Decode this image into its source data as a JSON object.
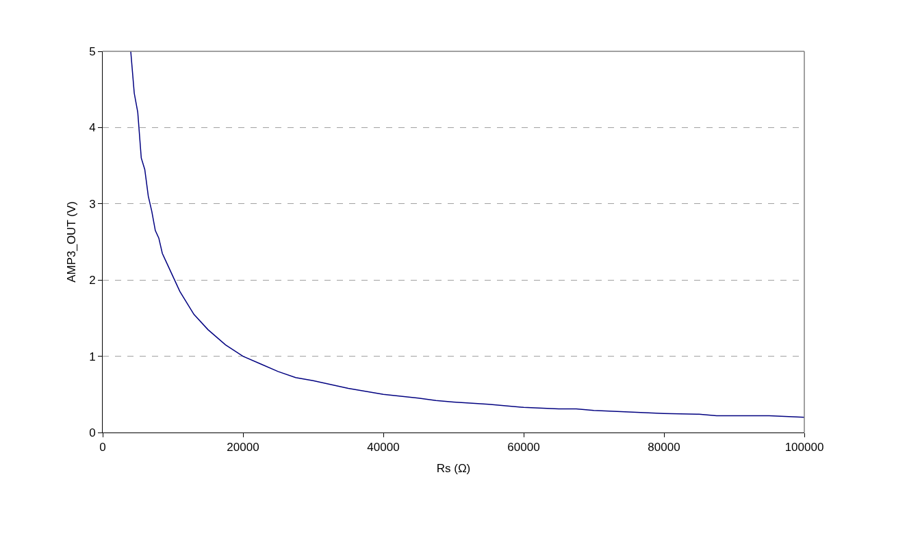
{
  "chart_data": {
    "type": "line",
    "xlabel": "Rs (Ω)",
    "ylabel": "AMP3_OUT (V)",
    "x": [
      4000,
      4500,
      5000,
      5500,
      6000,
      6500,
      7000,
      7500,
      8000,
      8500,
      9000,
      10000,
      11000,
      12000,
      13000,
      15000,
      17500,
      20000,
      22500,
      25000,
      27500,
      30000,
      35000,
      40000,
      45000,
      47500,
      50000,
      55000,
      60000,
      65000,
      67500,
      70000,
      75000,
      80000,
      85000,
      87500,
      90000,
      95000,
      100000
    ],
    "series": [
      {
        "color": "#000080",
        "values": [
          5,
          4.45,
          4.2,
          3.6,
          3.45,
          3.1,
          2.9,
          2.65,
          2.55,
          2.35,
          2.25,
          2.05,
          1.85,
          1.7,
          1.55,
          1.35,
          1.15,
          1.0,
          0.9,
          0.8,
          0.72,
          0.68,
          0.58,
          0.5,
          0.45,
          0.42,
          0.4,
          0.37,
          0.33,
          0.31,
          0.31,
          0.29,
          0.27,
          0.25,
          0.24,
          0.22,
          0.22,
          0.22,
          0.2
        ]
      }
    ],
    "xlim": [
      0,
      100000
    ],
    "xticks": [
      0,
      20000,
      40000,
      60000,
      80000,
      100000
    ],
    "ylim": [
      0,
      5
    ],
    "yticks": [
      0,
      1,
      2,
      3,
      4,
      5
    ],
    "grid": "y",
    "marker": "none",
    "line_style": "solid"
  }
}
